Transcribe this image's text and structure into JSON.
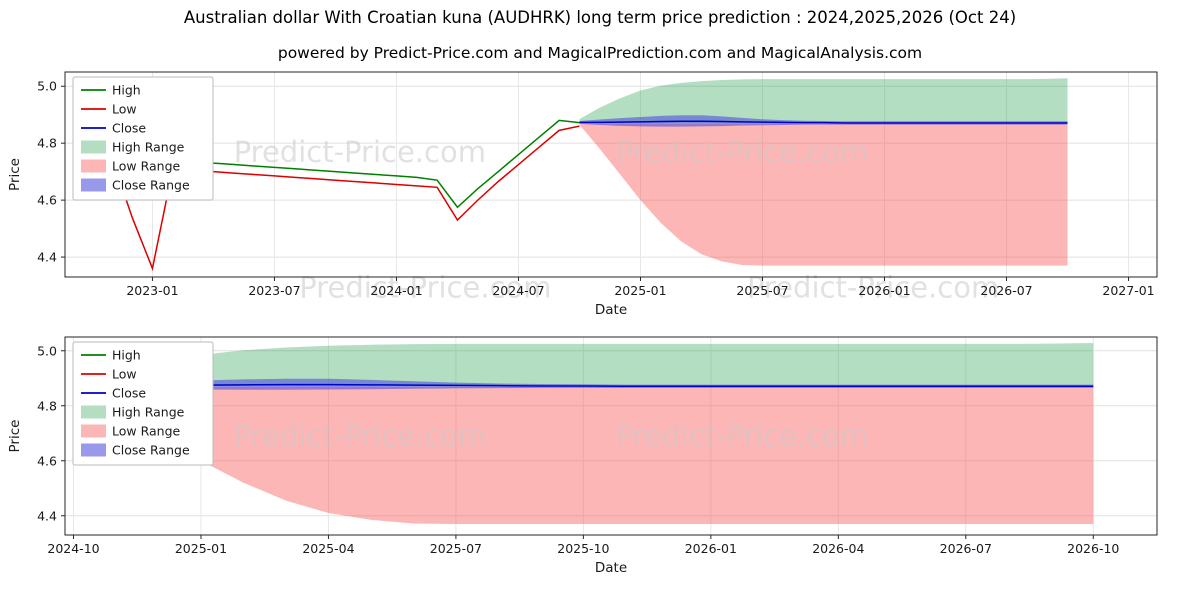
{
  "header": {
    "title": "Australian dollar With Croatian kuna (AUDHRK) long term price prediction : 2024,2025,2026 (Oct 24)",
    "subtitle": "powered by Predict-Price.com and MagicalPrediction.com and MagicalAnalysis.com"
  },
  "watermark": {
    "text": "Predict-Price.com",
    "color": "#c9c9c9"
  },
  "chart_data": {
    "series_pool": {
      "months_hist": [
        0,
        1,
        2,
        3,
        4,
        5,
        6,
        7,
        8,
        9,
        10,
        11,
        12,
        13,
        14,
        15,
        16,
        17,
        18,
        19,
        20,
        21,
        22,
        23,
        24
      ],
      "months_pred": [
        24,
        25,
        26,
        27,
        28,
        29,
        30,
        31,
        32,
        33,
        34,
        35,
        36,
        37,
        38,
        39,
        40,
        41,
        42,
        43,
        44,
        45,
        46,
        47,
        48
      ],
      "high_hist": [
        4.8,
        4.97,
        4.85,
        4.745,
        4.74,
        4.735,
        4.73,
        4.725,
        4.72,
        4.715,
        4.71,
        4.705,
        4.7,
        4.695,
        4.69,
        4.685,
        4.68,
        4.67,
        4.575,
        4.64,
        4.7,
        4.76,
        4.82,
        4.88,
        4.872
      ],
      "low_hist": [
        4.62,
        4.75,
        4.54,
        4.36,
        4.71,
        4.705,
        4.7,
        4.695,
        4.69,
        4.685,
        4.68,
        4.675,
        4.67,
        4.665,
        4.66,
        4.655,
        4.65,
        4.645,
        4.53,
        4.6,
        4.665,
        4.725,
        4.785,
        4.845,
        4.86
      ],
      "close_pred": [
        4.873,
        4.873,
        4.874,
        4.875,
        4.876,
        4.877,
        4.877,
        4.876,
        4.875,
        4.874,
        4.873,
        4.872,
        4.872,
        4.871,
        4.871,
        4.871,
        4.871,
        4.871,
        4.871,
        4.871,
        4.871,
        4.871,
        4.871,
        4.871,
        4.871
      ],
      "high_range_upper": [
        4.885,
        4.925,
        4.958,
        4.985,
        5.002,
        5.012,
        5.018,
        5.022,
        5.024,
        5.025,
        5.025,
        5.025,
        5.025,
        5.025,
        5.025,
        5.025,
        5.025,
        5.025,
        5.025,
        5.025,
        5.025,
        5.025,
        5.025,
        5.026,
        5.028
      ],
      "high_range_lower": [
        4.875,
        4.87,
        4.87,
        4.87,
        4.87,
        4.87,
        4.87,
        4.87,
        4.87,
        4.87,
        4.87,
        4.87,
        4.87,
        4.87,
        4.87,
        4.87,
        4.87,
        4.87,
        4.87,
        4.87,
        4.87,
        4.87,
        4.87,
        4.87,
        4.87
      ],
      "low_range_upper": [
        4.872,
        4.868,
        4.868,
        4.868,
        4.868,
        4.868,
        4.868,
        4.868,
        4.868,
        4.868,
        4.868,
        4.868,
        4.868,
        4.868,
        4.868,
        4.868,
        4.868,
        4.868,
        4.868,
        4.868,
        4.868,
        4.868,
        4.868,
        4.868,
        4.868
      ],
      "low_range_lower": [
        4.865,
        4.78,
        4.69,
        4.6,
        4.52,
        4.455,
        4.41,
        4.385,
        4.372,
        4.37,
        4.37,
        4.37,
        4.37,
        4.37,
        4.37,
        4.37,
        4.37,
        4.37,
        4.37,
        4.37,
        4.37,
        4.37,
        4.37,
        4.37,
        4.37
      ],
      "close_range_upper": [
        4.878,
        4.883,
        4.888,
        4.892,
        4.896,
        4.898,
        4.898,
        4.894,
        4.889,
        4.884,
        4.881,
        4.879,
        4.878,
        4.877,
        4.877,
        4.877,
        4.877,
        4.877,
        4.877,
        4.877,
        4.877,
        4.877,
        4.877,
        4.877,
        4.877
      ],
      "close_range_lower": [
        4.868,
        4.864,
        4.861,
        4.859,
        4.858,
        4.858,
        4.859,
        4.86,
        4.862,
        4.863,
        4.864,
        4.865,
        4.865,
        4.865,
        4.865,
        4.865,
        4.865,
        4.865,
        4.865,
        4.865,
        4.865,
        4.865,
        4.865,
        4.865,
        4.865
      ]
    },
    "charts": [
      {
        "type": "line",
        "name": "full-history-and-prediction",
        "xlabel": "Date",
        "ylabel": "Price",
        "x_unit": "months since 2022-10",
        "xlim": [
          -1.3,
          52.4
        ],
        "ylim": [
          4.33,
          5.05
        ],
        "yticks": [
          4.4,
          4.6,
          4.8,
          5.0
        ],
        "xticks": [
          {
            "m": 3,
            "label": "2023-01"
          },
          {
            "m": 9,
            "label": "2023-07"
          },
          {
            "m": 15,
            "label": "2024-01"
          },
          {
            "m": 21,
            "label": "2024-07"
          },
          {
            "m": 27,
            "label": "2025-01"
          },
          {
            "m": 33,
            "label": "2025-07"
          },
          {
            "m": 39,
            "label": "2026-01"
          },
          {
            "m": 45,
            "label": "2026-07"
          },
          {
            "m": 51,
            "label": "2027-01"
          }
        ],
        "legend": [
          {
            "label": "High",
            "type": "line",
            "color": "#008000"
          },
          {
            "label": "Low",
            "type": "line",
            "color": "#dd0000"
          },
          {
            "label": "Close",
            "type": "line",
            "color": "#0000cc"
          },
          {
            "label": "High Range",
            "type": "patch",
            "color": "rgba(40,160,80,0.35)"
          },
          {
            "label": "Low Range",
            "type": "patch",
            "color": "rgba(250,80,80,0.42)"
          },
          {
            "label": "Close Range",
            "type": "patch",
            "color": "rgba(70,70,220,0.55)"
          }
        ],
        "bands": [
          {
            "name": "High Range",
            "x": "months_pred",
            "upper": "high_range_upper",
            "lower": "high_range_lower",
            "color": "rgba(40,160,80,0.35)"
          },
          {
            "name": "Low Range",
            "x": "months_pred",
            "upper": "low_range_upper",
            "lower": "low_range_lower",
            "color": "rgba(250,80,80,0.42)"
          },
          {
            "name": "Close Range",
            "x": "months_pred",
            "upper": "close_range_upper",
            "lower": "close_range_lower",
            "color": "rgba(70,70,220,0.55)"
          }
        ],
        "lines": [
          {
            "name": "High",
            "x": "months_hist",
            "y": "high_hist",
            "color": "#008000"
          },
          {
            "name": "Low",
            "x": "months_hist",
            "y": "low_hist",
            "color": "#dd0000"
          },
          {
            "name": "Close",
            "x": "months_pred",
            "y": "close_pred",
            "color": "#0000cc"
          }
        ]
      },
      {
        "type": "line",
        "name": "prediction-zoom",
        "xlabel": "Date",
        "ylabel": "Price",
        "x_unit": "months since 2022-10",
        "xlim": [
          23.8,
          49.5
        ],
        "ylim": [
          4.33,
          5.05
        ],
        "yticks": [
          4.4,
          4.6,
          4.8,
          5.0
        ],
        "xticks": [
          {
            "m": 24,
            "label": "2024-10"
          },
          {
            "m": 27,
            "label": "2025-01"
          },
          {
            "m": 30,
            "label": "2025-04"
          },
          {
            "m": 33,
            "label": "2025-07"
          },
          {
            "m": 36,
            "label": "2025-10"
          },
          {
            "m": 39,
            "label": "2026-01"
          },
          {
            "m": 42,
            "label": "2026-04"
          },
          {
            "m": 45,
            "label": "2026-07"
          },
          {
            "m": 48,
            "label": "2026-10"
          }
        ],
        "legend": [
          {
            "label": "High",
            "type": "line",
            "color": "#008000"
          },
          {
            "label": "Low",
            "type": "line",
            "color": "#dd0000"
          },
          {
            "label": "Close",
            "type": "line",
            "color": "#0000cc"
          },
          {
            "label": "High Range",
            "type": "patch",
            "color": "rgba(40,160,80,0.35)"
          },
          {
            "label": "Low Range",
            "type": "patch",
            "color": "rgba(250,80,80,0.42)"
          },
          {
            "label": "Close Range",
            "type": "patch",
            "color": "rgba(70,70,220,0.55)"
          }
        ],
        "bands": [
          {
            "name": "High Range",
            "x": "months_pred",
            "upper": "high_range_upper",
            "lower": "high_range_lower",
            "color": "rgba(40,160,80,0.35)"
          },
          {
            "name": "Low Range",
            "x": "months_pred",
            "upper": "low_range_upper",
            "lower": "low_range_lower",
            "color": "rgba(250,80,80,0.42)"
          },
          {
            "name": "Close Range",
            "x": "months_pred",
            "upper": "close_range_upper",
            "lower": "close_range_lower",
            "color": "rgba(70,70,220,0.55)"
          }
        ],
        "lines": [
          {
            "name": "Close",
            "x": "months_pred",
            "y": "close_pred",
            "color": "#0000cc"
          }
        ]
      }
    ]
  }
}
